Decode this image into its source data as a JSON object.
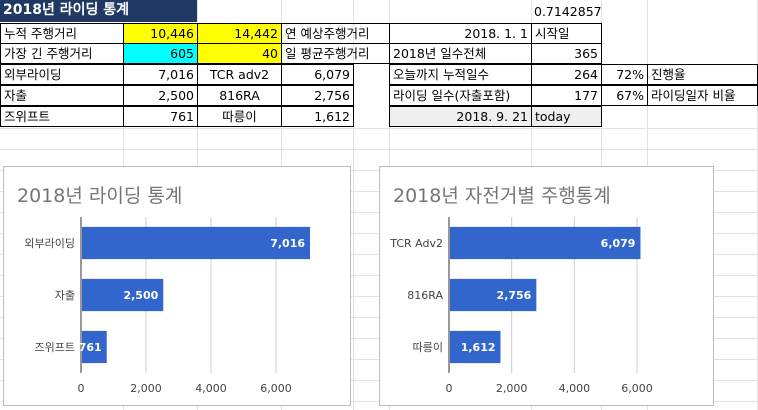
{
  "sheet": {
    "title": "2018년 라이딩 통계",
    "ratio_value": "0.7142857",
    "rows": {
      "r2": {
        "label": "누적 주행거리",
        "v1": "10,446",
        "v2": "14,442",
        "v3_label": "연 예상주행거리",
        "date": "2018. 1. 1",
        "date_label": "시작일"
      },
      "r3": {
        "label": "가장  긴 주행거리",
        "v1": "605",
        "v2": "40",
        "v3_label": "일 평균주행거리",
        "days_label": "2018년 일수전체",
        "days_value": "365"
      },
      "r4": {
        "label": "외부라이딩",
        "v1": "7,016",
        "bike": "TCR adv2",
        "bike_v": "6,079",
        "k_label": "오늘까지 누적일수",
        "k_value": "264",
        "pct": "72%",
        "pct_label": "진행율"
      },
      "r5": {
        "label": "자출",
        "v1": "2,500",
        "bike": "816RA",
        "bike_v": "2,756",
        "k_label": "라이딩 일수(자출포함)",
        "k_value": "177",
        "pct": "67%",
        "pct_label": "라이딩일자 비율"
      },
      "r6": {
        "label": "즈위프트",
        "v1": "761",
        "bike": "따릉이",
        "bike_v": "1,612",
        "date": "2018. 9. 21",
        "today_label": "today"
      }
    }
  },
  "chart_data": [
    {
      "type": "bar",
      "orientation": "horizontal",
      "title": "2018년 라이딩 통계",
      "categories": [
        "외부라이딩",
        "자출",
        "즈위프트"
      ],
      "values": [
        7016,
        2500,
        761
      ],
      "value_labels": [
        "7,016",
        "2,500",
        "761"
      ],
      "xlim": [
        0,
        7000
      ],
      "xticks": [
        0,
        2000,
        4000,
        6000
      ],
      "xtick_labels": [
        "0",
        "2,000",
        "4,000",
        "6,000"
      ],
      "color": "#3366cc"
    },
    {
      "type": "bar",
      "orientation": "horizontal",
      "title": "2018년 자전거별 주행통계",
      "categories": [
        "TCR Adv2",
        "816RA",
        "따릉이"
      ],
      "values": [
        6079,
        2756,
        1612
      ],
      "value_labels": [
        "6,079",
        "2,756",
        "1,612"
      ],
      "xlim": [
        0,
        7000
      ],
      "xticks": [
        0,
        2000,
        4000,
        6000
      ],
      "xtick_labels": [
        "0",
        "2,000",
        "4,000",
        "6,000"
      ],
      "color": "#3366cc"
    }
  ]
}
